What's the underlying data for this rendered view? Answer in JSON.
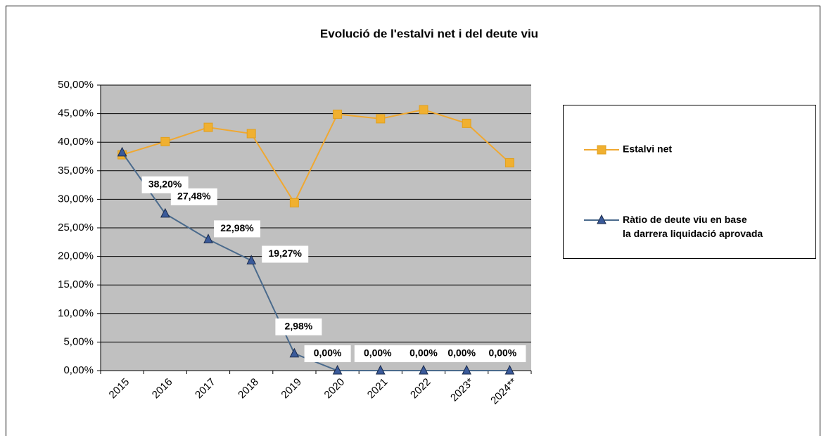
{
  "chart_data": {
    "type": "line",
    "title": "Evolució de l'estalvi net i del deute viu",
    "categories": [
      "2015",
      "2016",
      "2017",
      "2018",
      "2019",
      "2020",
      "2021",
      "2022",
      "2023*",
      "2024**"
    ],
    "series": [
      {
        "name": "Estalvi net",
        "color": "#f0a830",
        "values": [
          37.8,
          40.1,
          42.6,
          41.5,
          29.4,
          44.9,
          44.1,
          45.7,
          43.3,
          36.4
        ]
      },
      {
        "name": "Ràtio de deute viu en base la darrera liquidació aprovada",
        "color": "#4a6a8c",
        "values": [
          38.2,
          27.48,
          22.98,
          19.27,
          2.98,
          0,
          0,
          0,
          0,
          0
        ],
        "value_labels": [
          "38,20%",
          "27,48%",
          "22,98%",
          "19,27%",
          "2,98%",
          "0,00%",
          "0,00%",
          "0,00%",
          "0,00%",
          "0,00%"
        ]
      }
    ],
    "ylim": [
      0,
      50
    ],
    "yticks": [
      {
        "value": 0,
        "label": "0,00%"
      },
      {
        "value": 5,
        "label": "5,00%"
      },
      {
        "value": 10,
        "label": "10,00%"
      },
      {
        "value": 15,
        "label": "15,00%"
      },
      {
        "value": 20,
        "label": "20,00%"
      },
      {
        "value": 25,
        "label": "25,00%"
      },
      {
        "value": 30,
        "label": "30,00%"
      },
      {
        "value": 35,
        "label": "35,00%"
      },
      {
        "value": 40,
        "label": "40,00%"
      },
      {
        "value": 45,
        "label": "45,00%"
      },
      {
        "value": 50,
        "label": "50,00%"
      }
    ],
    "grid": true,
    "legend": "right"
  }
}
